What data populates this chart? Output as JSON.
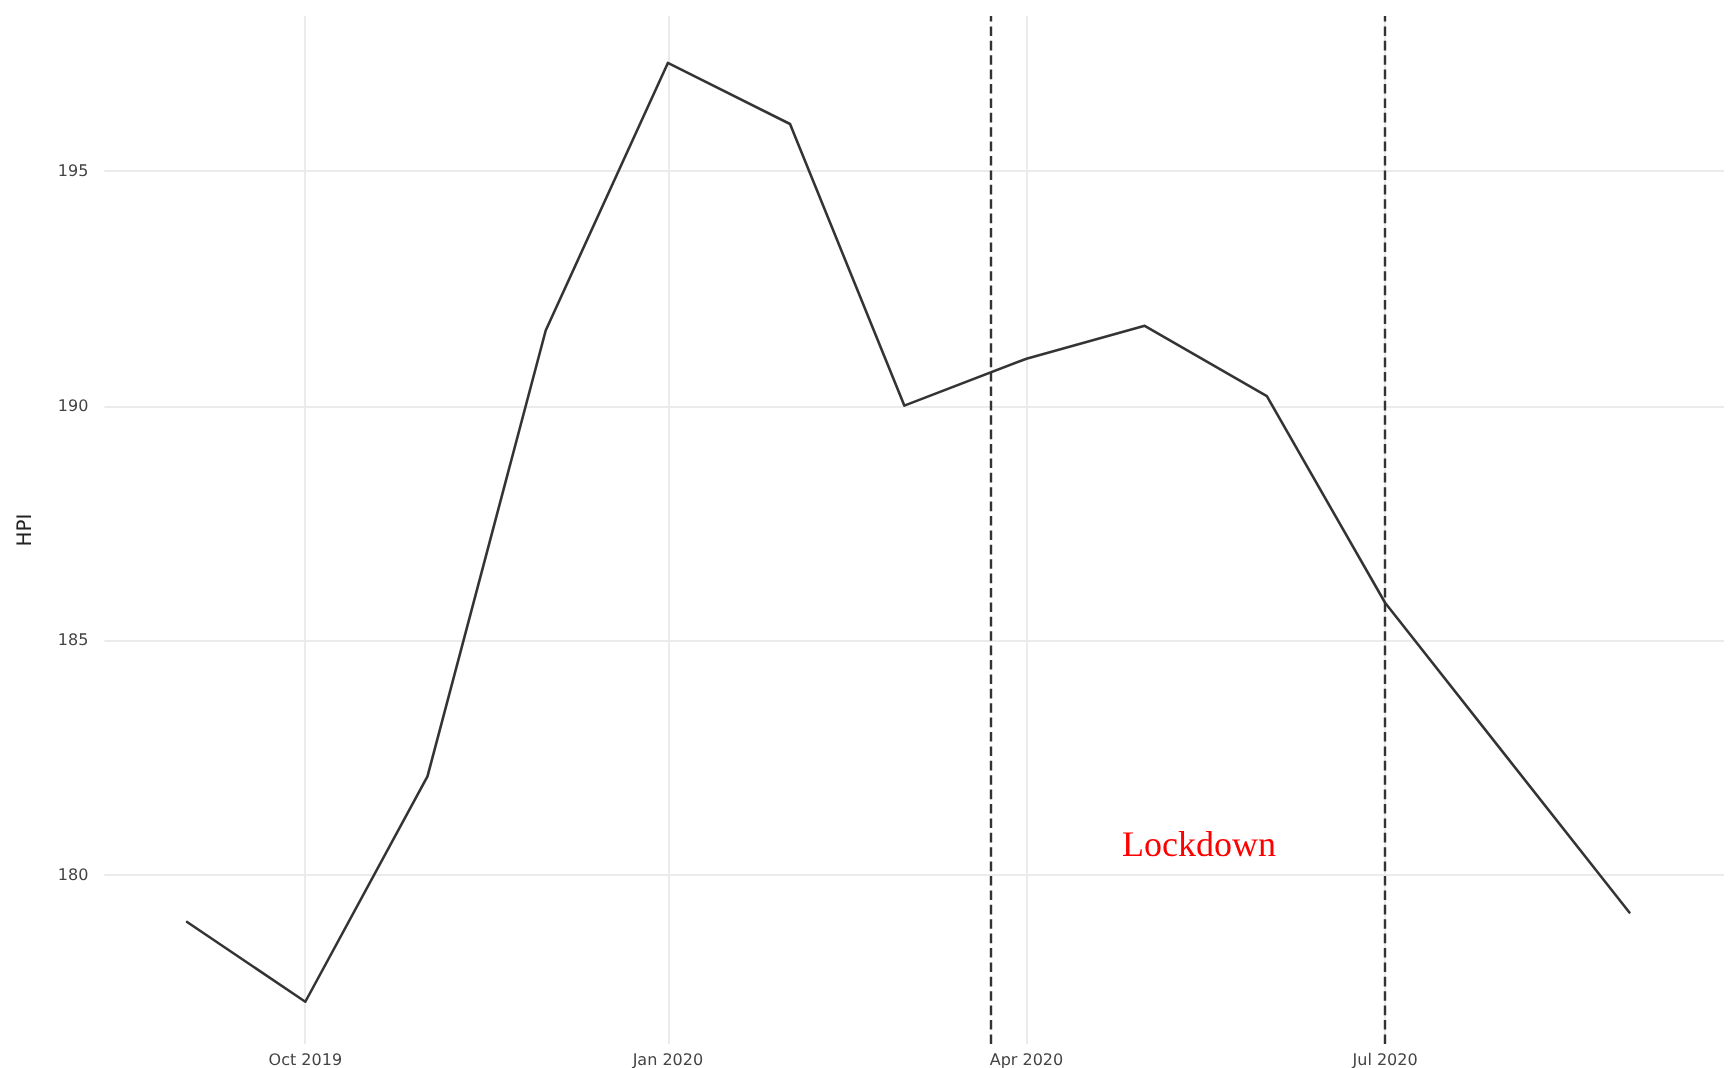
{
  "chart_data": {
    "type": "line",
    "ylabel": "HPI",
    "x": [
      "2019-09-01",
      "2019-10-01",
      "2019-11-01",
      "2019-12-01",
      "2020-01-01",
      "2020-02-01",
      "2020-03-01",
      "2020-04-01",
      "2020-05-01",
      "2020-06-01",
      "2020-07-01",
      "2020-08-01",
      "2020-09-01"
    ],
    "series": [
      {
        "color": "#333333",
        "values": [
          179.0,
          177.3,
          182.1,
          191.6,
          197.3,
          196.0,
          190.0,
          191.0,
          191.7,
          190.2,
          185.8,
          182.5,
          179.2
        ]
      }
    ],
    "xlim": [
      "2019-08-11",
      "2020-09-25"
    ],
    "xticks": [
      {
        "value": "2019-10-01",
        "label": "Oct 2019"
      },
      {
        "value": "2020-01-01",
        "label": "Jan 2020"
      },
      {
        "value": "2020-04-01",
        "label": "Apr 2020"
      },
      {
        "value": "2020-07-01",
        "label": "Jul 2020"
      }
    ],
    "ylim": [
      176.4,
      198.3
    ],
    "yticks": [
      180,
      185,
      190,
      195
    ],
    "ref_lines": [
      {
        "axis": "x",
        "value": "2020-03-23",
        "color": "#333333",
        "line_style": "dashed"
      },
      {
        "axis": "x",
        "value": "2020-07-01",
        "color": "#333333",
        "line_style": "dashed"
      }
    ],
    "annotations": [
      "Lockdown"
    ],
    "grid": true,
    "marker": "none",
    "line_style": "solid"
  }
}
